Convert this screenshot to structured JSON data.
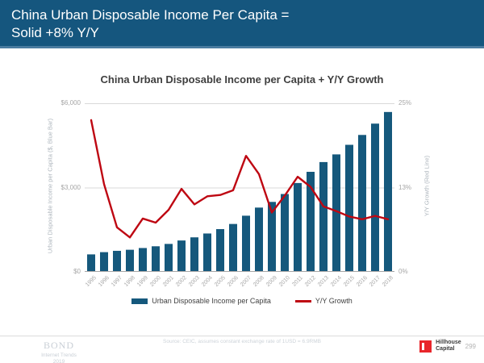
{
  "header": {
    "title": "China Urban Disposable Income Per Capita =\nSolid +8% Y/Y"
  },
  "chart": {
    "title": "China Urban Disposable Income per Capita + Y/Y Growth",
    "left_axis_label": "Urban Disposable Income per Capita ($, Blue Bar)",
    "right_axis_label": "Y/Y Growth (Red Line)",
    "left_ticks": [
      "$6,000",
      "$3,000",
      "$0"
    ],
    "right_ticks": [
      "25%",
      "13%",
      "0%"
    ]
  },
  "chart_data": {
    "type": "bar",
    "categories": [
      1995,
      1996,
      1997,
      1998,
      1999,
      2000,
      2001,
      2002,
      2003,
      2004,
      2005,
      2006,
      2007,
      2008,
      2009,
      2010,
      2011,
      2012,
      2013,
      2014,
      2015,
      2016,
      2017,
      2018
    ],
    "series": [
      {
        "name": "Urban Disposable Income per Capita",
        "type": "bar",
        "axis": "left",
        "color": "#15587C",
        "values": [
          621,
          701,
          748,
          786,
          848,
          910,
          994,
          1116,
          1228,
          1365,
          1521,
          1704,
          1998,
          2287,
          2489,
          2770,
          3161,
          3560,
          3907,
          4180,
          4521,
          4872,
          5275,
          5689
        ]
      },
      {
        "name": "Y/Y Growth",
        "type": "line",
        "axis": "right",
        "color": "#BE0712",
        "values": [
          22.5,
          13.0,
          6.6,
          5.1,
          7.9,
          7.3,
          9.2,
          12.3,
          10.0,
          11.2,
          11.4,
          12.1,
          17.2,
          14.5,
          8.8,
          11.3,
          14.1,
          12.6,
          9.7,
          9.0,
          8.2,
          7.8,
          8.3,
          7.8
        ]
      }
    ],
    "left_ylim": [
      0,
      6000
    ],
    "right_ylim": [
      0,
      25
    ],
    "gridline_values": [
      3000,
      6000
    ],
    "grid": true,
    "legend_position": "bottom",
    "title": "China Urban Disposable Income per Capita + Y/Y Growth",
    "xlabel": "",
    "ylabel_left": "Urban Disposable Income per Capita ($, Blue Bar)",
    "ylabel_right": "Y/Y Growth (Red Line)"
  },
  "footer": {
    "brand_name": "BOND",
    "brand_line2": "Internet Trends",
    "brand_line3": "2019",
    "source": "Source: CEIC, assumes constant exchange rate of 1USD = 6.9RMB",
    "logo_line1": "Hillhouse",
    "logo_line2": "Capital",
    "page_number": "299"
  },
  "colors": {
    "header_bg": "#15567E",
    "header_accent": "#4A7CA0",
    "bar": "#15587C",
    "line": "#BE0712",
    "gridline": "#D9D9D9",
    "axis_line": "#A6A6A6",
    "logo_red": "#E8262B"
  }
}
